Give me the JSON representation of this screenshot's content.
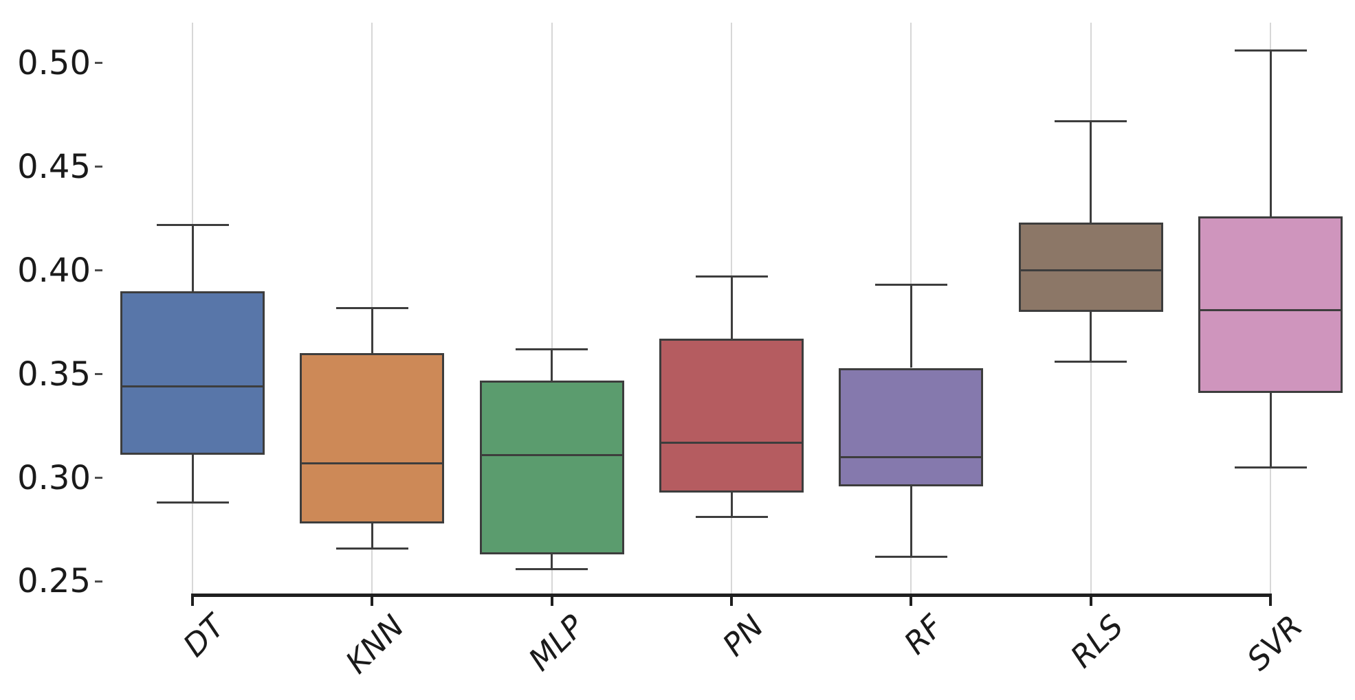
{
  "chart_data": {
    "type": "box",
    "title": "",
    "xlabel": "",
    "ylabel": "",
    "legend": "none",
    "grid": "vertical-category-gridlines-only",
    "categories": [
      "DT",
      "KNN",
      "MLP",
      "PN",
      "RF",
      "RLS",
      "SVR"
    ],
    "series": [
      {
        "name": "DT",
        "whisker_low": 0.288,
        "q1": 0.311,
        "median": 0.344,
        "q3": 0.39,
        "whisker_high": 0.422,
        "color": "#5876A9"
      },
      {
        "name": "KNN",
        "whisker_low": 0.266,
        "q1": 0.278,
        "median": 0.307,
        "q3": 0.36,
        "whisker_high": 0.382,
        "color": "#CD8957"
      },
      {
        "name": "MLP",
        "whisker_low": 0.256,
        "q1": 0.263,
        "median": 0.311,
        "q3": 0.347,
        "whisker_high": 0.362,
        "color": "#5B9C6E"
      },
      {
        "name": "PN",
        "whisker_low": 0.281,
        "q1": 0.293,
        "median": 0.317,
        "q3": 0.367,
        "whisker_high": 0.397,
        "color": "#B55C60"
      },
      {
        "name": "RF",
        "whisker_low": 0.262,
        "q1": 0.296,
        "median": 0.31,
        "q3": 0.353,
        "whisker_high": 0.393,
        "color": "#8579AD"
      },
      {
        "name": "RLS",
        "whisker_low": 0.356,
        "q1": 0.38,
        "median": 0.4,
        "q3": 0.423,
        "whisker_high": 0.472,
        "color": "#8C7767"
      },
      {
        "name": "SVR",
        "whisker_low": 0.305,
        "q1": 0.341,
        "median": 0.381,
        "q3": 0.426,
        "whisker_high": 0.506,
        "color": "#CF95BD"
      }
    ],
    "yticks": {
      "values": [
        0.25,
        0.3,
        0.35,
        0.4,
        0.45,
        0.5
      ],
      "labels": [
        "0.25",
        "0.30",
        "0.35",
        "0.40",
        "0.45",
        "0.50"
      ]
    },
    "ylim": [
      0.2435,
      0.5195
    ],
    "colors": {
      "box_edge": "#3d3d3d",
      "gridline": "#d7d7d7",
      "spine": "#1f1f1f",
      "tick_label": "#1a1a1a"
    }
  }
}
